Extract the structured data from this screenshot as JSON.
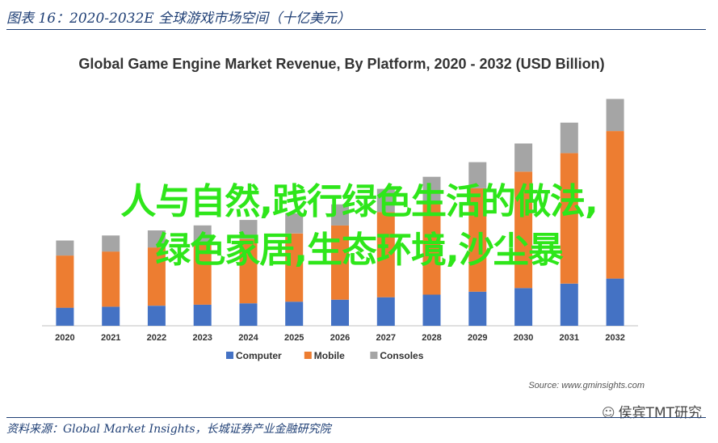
{
  "figure": {
    "title": "图表 16：2020-2032E 全球游戏市场空间（十亿美元）",
    "source": "资料来源：Global Market Insights，长城证券产业金融研究院"
  },
  "overlay": {
    "line1": "人与自然,践行绿色生活的做法,",
    "line2": "绿色家居,生态环境,沙尘暴"
  },
  "watermark": {
    "icon": "wechat-icon",
    "text": "侯宾TMT研究"
  },
  "chart_data": {
    "type": "bar",
    "stacked": true,
    "title": "Global Game Engine Market Revenue, By Platform, 2020 - 2032 (USD Billion)",
    "source_note": "Source: www.gminsights.com",
    "categories": [
      "2020",
      "2021",
      "2022",
      "2023",
      "2024",
      "2025",
      "2026",
      "2027",
      "2028",
      "2029",
      "2030",
      "2031",
      "2032"
    ],
    "series": [
      {
        "name": "Computer",
        "color": "#4472c4",
        "values": [
          0.9,
          0.95,
          1.0,
          1.05,
          1.12,
          1.2,
          1.3,
          1.42,
          1.55,
          1.7,
          1.88,
          2.1,
          2.35
        ]
      },
      {
        "name": "Mobile",
        "color": "#ed7d31",
        "values": [
          2.6,
          2.75,
          2.9,
          3.05,
          3.2,
          3.4,
          3.7,
          4.25,
          4.65,
          5.15,
          5.8,
          6.5,
          7.35
        ]
      },
      {
        "name": "Consoles",
        "color": "#a5a5a5",
        "values": [
          0.75,
          0.8,
          0.85,
          0.9,
          0.95,
          1.0,
          1.05,
          1.15,
          1.22,
          1.3,
          1.4,
          1.52,
          1.6
        ]
      }
    ],
    "ylim": [
      0,
      12
    ],
    "grid": false,
    "legend": "bottom"
  }
}
